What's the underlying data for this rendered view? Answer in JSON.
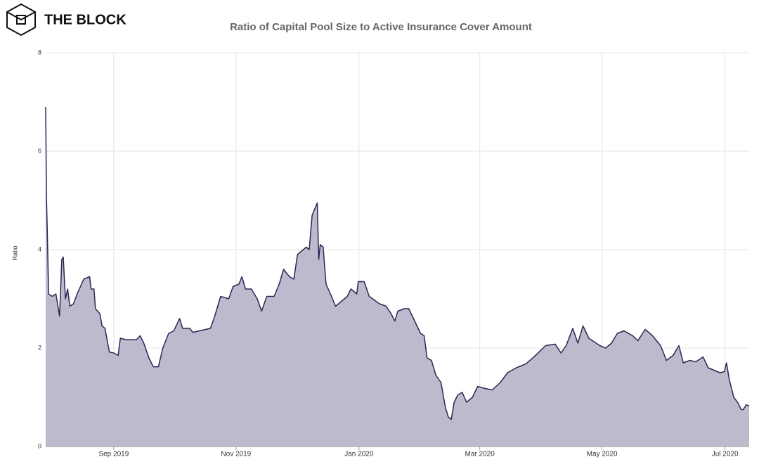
{
  "chart_data": {
    "type": "area",
    "brand": "THE BLOCK",
    "title": "Ratio of Capital Pool Size to Active Insurance Cover Amount",
    "y_label": "Ratio",
    "x": [
      2019.572,
      2019.573,
      2019.574,
      2019.576,
      2019.581,
      2019.586,
      2019.591,
      2019.594,
      2019.596,
      2019.599,
      2019.602,
      2019.605,
      2019.61,
      2019.615,
      2019.624,
      2019.632,
      2019.634,
      2019.638,
      2019.64,
      2019.646,
      2019.649,
      2019.653,
      2019.659,
      2019.665,
      2019.671,
      2019.674,
      2019.682,
      2019.696,
      2019.701,
      2019.706,
      2019.713,
      2019.719,
      2019.726,
      2019.732,
      2019.74,
      2019.747,
      2019.755,
      2019.759,
      2019.769,
      2019.773,
      2019.797,
      2019.803,
      2019.811,
      2019.822,
      2019.828,
      2019.836,
      2019.84,
      2019.845,
      2019.853,
      2019.861,
      2019.867,
      2019.874,
      2019.884,
      2019.891,
      2019.897,
      2019.905,
      2019.911,
      2019.916,
      2019.928,
      2019.932,
      2019.936,
      2019.943,
      2019.945,
      2019.947,
      2019.951,
      2019.955,
      2019.961,
      2019.968,
      2019.976,
      2019.984,
      2019.989,
      2019.997,
      2019.999,
      2020.007,
      2020.014,
      2020.028,
      2020.037,
      2020.043,
      2020.049,
      2020.053,
      2020.062,
      2020.068,
      2020.076,
      2020.084,
      2020.089,
      2020.093,
      2020.099,
      2020.105,
      2020.112,
      2020.118,
      2020.122,
      2020.126,
      2020.13,
      2020.135,
      2020.141,
      2020.147,
      2020.155,
      2020.162,
      2020.172,
      2020.182,
      2020.193,
      2020.203,
      2020.215,
      2020.228,
      2020.239,
      2020.255,
      2020.268,
      2020.276,
      2020.283,
      2020.292,
      2020.299,
      2020.306,
      2020.314,
      2020.329,
      2020.337,
      2020.345,
      2020.353,
      2020.362,
      2020.374,
      2020.381,
      2020.391,
      2020.401,
      2020.412,
      2020.42,
      2020.429,
      2020.437,
      2020.443,
      2020.452,
      2020.46,
      2020.47,
      2020.477,
      2020.485,
      2020.493,
      2020.499,
      2020.502,
      2020.506,
      2020.512,
      2020.518,
      2020.522,
      2020.525,
      2020.529,
      2020.533
    ],
    "series": [
      {
        "color": "#2a2852",
        "fill": "#bdbacd",
        "values": [
          6.9,
          5.1,
          4.5,
          3.1,
          3.05,
          3.1,
          2.65,
          3.8,
          3.85,
          3.0,
          3.2,
          2.85,
          2.9,
          3.1,
          3.4,
          3.45,
          3.2,
          3.2,
          2.8,
          2.7,
          2.45,
          2.4,
          1.92,
          1.9,
          1.85,
          2.2,
          2.17,
          2.17,
          2.25,
          2.1,
          1.8,
          1.62,
          1.62,
          2.0,
          2.3,
          2.35,
          2.6,
          2.4,
          2.4,
          2.32,
          2.4,
          2.65,
          3.05,
          3.0,
          3.25,
          3.3,
          3.45,
          3.2,
          3.2,
          3.0,
          2.75,
          3.05,
          3.05,
          3.3,
          3.6,
          3.45,
          3.4,
          3.9,
          4.05,
          4.0,
          4.7,
          4.95,
          3.8,
          4.1,
          4.05,
          3.3,
          3.1,
          2.85,
          2.95,
          3.05,
          3.2,
          3.1,
          3.35,
          3.35,
          3.05,
          2.9,
          2.85,
          2.72,
          2.55,
          2.75,
          2.8,
          2.8,
          2.55,
          2.3,
          2.25,
          1.8,
          1.75,
          1.45,
          1.3,
          0.8,
          0.6,
          0.55,
          0.9,
          1.05,
          1.1,
          0.9,
          1.0,
          1.22,
          1.18,
          1.15,
          1.3,
          1.5,
          1.6,
          1.68,
          1.82,
          2.05,
          2.08,
          1.9,
          2.05,
          2.4,
          2.1,
          2.45,
          2.2,
          2.05,
          2.0,
          2.1,
          2.3,
          2.35,
          2.25,
          2.15,
          2.38,
          2.25,
          2.05,
          1.75,
          1.85,
          2.05,
          1.7,
          1.75,
          1.72,
          1.82,
          1.6,
          1.55,
          1.5,
          1.52,
          1.7,
          1.35,
          1.0,
          0.88,
          0.75,
          0.75,
          0.85,
          0.82
        ]
      }
    ],
    "xlim": [
      2019.572,
      2020.533
    ],
    "xticks": [
      {
        "value": 2019.665,
        "label": "Sep 2019"
      },
      {
        "value": 2019.832,
        "label": "Nov 2019"
      },
      {
        "value": 2020.0,
        "label": "Jan 2020"
      },
      {
        "value": 2020.165,
        "label": "Mar 2020"
      },
      {
        "value": 2020.332,
        "label": "May 2020"
      },
      {
        "value": 2020.5,
        "label": "Jul 2020"
      }
    ],
    "ylim": [
      0,
      8
    ],
    "yticks": [
      0,
      2,
      4,
      6,
      8
    ],
    "grid": true
  }
}
